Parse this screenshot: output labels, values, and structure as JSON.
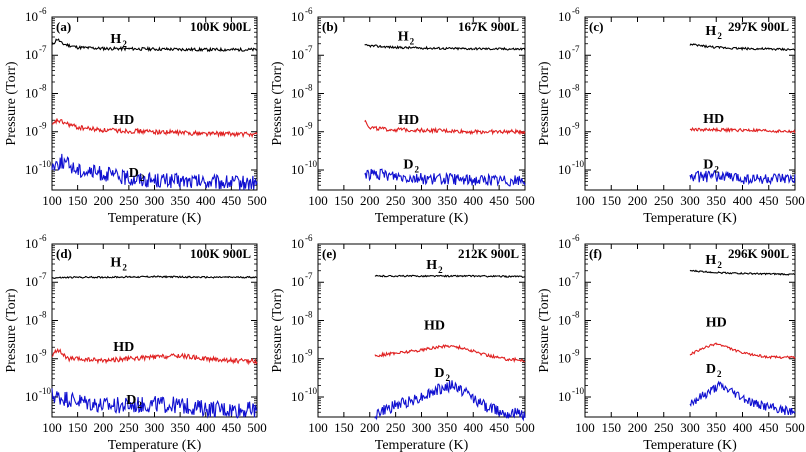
{
  "chart_data": [
    {
      "type": "line",
      "panel": "(a)",
      "condition": "100K 900L",
      "xlabel": "Temperature (K)",
      "ylabel": "Pressure (Torr)",
      "xlim": [
        100,
        500
      ],
      "ylim": [
        3e-11,
        1e-06
      ],
      "yscale": "log",
      "xticks": [
        100,
        150,
        200,
        250,
        300,
        350,
        400,
        450,
        500
      ],
      "yticks": [
        {
          "value": 1e-10,
          "exp": "-10"
        },
        {
          "value": 1e-09,
          "exp": "-9"
        },
        {
          "value": 1e-08,
          "exp": "-8"
        },
        {
          "value": 1e-07,
          "exp": "-7"
        },
        {
          "value": 1e-06,
          "exp": "-6"
        }
      ],
      "series": [
        {
          "name": "H2",
          "label": "H",
          "label_sub": "2",
          "label_x": 230,
          "label_y": 2.1e-07,
          "color": "#000000",
          "noise": 0.04,
          "x": [
            100,
            110,
            120,
            150,
            200,
            300,
            400,
            500
          ],
          "y": [
            1.8e-07,
            2.7e-07,
            2e-07,
            1.6e-07,
            1.5e-07,
            1.45e-07,
            1.4e-07,
            1.4e-07
          ]
        },
        {
          "name": "HD",
          "label": "HD",
          "label_x": 240,
          "label_y": 1.6e-09,
          "color": "#e02020",
          "noise": 0.06,
          "x": [
            100,
            110,
            130,
            150,
            200,
            300,
            400,
            500
          ],
          "y": [
            1.4e-09,
            2e-09,
            1.6e-09,
            1.3e-09,
            1.1e-09,
            1e-09,
            9e-10,
            8.5e-10
          ]
        },
        {
          "name": "D2",
          "label": "D",
          "label_sub": "2",
          "label_x": 265,
          "label_y": 6.5e-11,
          "color": "#1010d0",
          "noise": 0.2,
          "x": [
            100,
            120,
            150,
            200,
            250,
            300,
            400,
            500
          ],
          "y": [
            1.3e-10,
            1.7e-10,
            1e-10,
            8e-11,
            6e-11,
            5.5e-11,
            4.8e-11,
            4.5e-11
          ]
        }
      ]
    },
    {
      "type": "line",
      "panel": "(b)",
      "condition": "167K 900L",
      "xlabel": "Temperature (K)",
      "ylabel": "Pressure (Torr)",
      "xlim": [
        100,
        500
      ],
      "ylim": [
        3e-11,
        1e-06
      ],
      "yscale": "log",
      "xticks": [
        100,
        150,
        200,
        250,
        300,
        350,
        400,
        450,
        500
      ],
      "yticks": [
        {
          "value": 1e-10,
          "exp": "-10"
        },
        {
          "value": 1e-09,
          "exp": "-9"
        },
        {
          "value": 1e-08,
          "exp": "-8"
        },
        {
          "value": 1e-07,
          "exp": "-7"
        },
        {
          "value": 1e-06,
          "exp": "-6"
        }
      ],
      "series": [
        {
          "name": "H2",
          "label": "H",
          "label_sub": "2",
          "label_x": 270,
          "label_y": 2.4e-07,
          "color": "#000000",
          "noise": 0.03,
          "x": [
            190,
            250,
            350,
            500
          ],
          "y": [
            1.8e-07,
            1.6e-07,
            1.5e-07,
            1.45e-07
          ]
        },
        {
          "name": "HD",
          "label": "HD",
          "label_x": 275,
          "label_y": 1.6e-09,
          "color": "#e02020",
          "noise": 0.05,
          "x": [
            190,
            200,
            230,
            300,
            400,
            500
          ],
          "y": [
            2e-09,
            1.3e-09,
            1.15e-09,
            1.1e-09,
            1e-09,
            1e-09
          ]
        },
        {
          "name": "D2",
          "label": "D",
          "label_sub": "2",
          "label_x": 280,
          "label_y": 1.1e-10,
          "color": "#1010d0",
          "noise": 0.15,
          "x": [
            190,
            250,
            300,
            400,
            500
          ],
          "y": [
            8e-11,
            7e-11,
            6e-11,
            5.5e-11,
            5.2e-11
          ]
        }
      ]
    },
    {
      "type": "line",
      "panel": "(c)",
      "condition": "297K 900L",
      "xlabel": "Temperature (K)",
      "ylabel": "Pressure (Torr)",
      "xlim": [
        100,
        500
      ],
      "ylim": [
        3e-11,
        1e-06
      ],
      "yscale": "log",
      "xticks": [
        100,
        150,
        200,
        250,
        300,
        350,
        400,
        450,
        500
      ],
      "yticks": [
        {
          "value": 1e-10,
          "exp": "-10"
        },
        {
          "value": 1e-09,
          "exp": "-9"
        },
        {
          "value": 1e-08,
          "exp": "-8"
        },
        {
          "value": 1e-07,
          "exp": "-7"
        },
        {
          "value": 1e-06,
          "exp": "-6"
        }
      ],
      "series": [
        {
          "name": "H2",
          "label": "H",
          "label_sub": "2",
          "label_x": 345,
          "label_y": 3.4e-07,
          "color": "#000000",
          "noise": 0.03,
          "x": [
            300,
            350,
            400,
            500
          ],
          "y": [
            1.9e-07,
            1.6e-07,
            1.5e-07,
            1.4e-07
          ]
        },
        {
          "name": "HD",
          "label": "HD",
          "label_x": 345,
          "label_y": 1.7e-09,
          "color": "#e02020",
          "noise": 0.04,
          "x": [
            300,
            400,
            500
          ],
          "y": [
            1.15e-09,
            1.1e-09,
            1e-09
          ]
        },
        {
          "name": "D2",
          "label": "D",
          "label_sub": "2",
          "label_x": 340,
          "label_y": 1.1e-10,
          "color": "#1010d0",
          "noise": 0.15,
          "x": [
            300,
            360,
            400,
            500
          ],
          "y": [
            6.5e-11,
            7e-11,
            6e-11,
            5.5e-11
          ]
        }
      ]
    },
    {
      "type": "line",
      "panel": "(d)",
      "condition": "100K 900L",
      "xlabel": "Temperature (K)",
      "ylabel": "Pressure (Torr)",
      "xlim": [
        100,
        500
      ],
      "ylim": [
        3e-11,
        1e-06
      ],
      "yscale": "log",
      "xticks": [
        100,
        150,
        200,
        250,
        300,
        350,
        400,
        450,
        500
      ],
      "yticks": [
        {
          "value": 1e-10,
          "exp": "-10"
        },
        {
          "value": 1e-09,
          "exp": "-9"
        },
        {
          "value": 1e-08,
          "exp": "-8"
        },
        {
          "value": 1e-07,
          "exp": "-7"
        },
        {
          "value": 1e-06,
          "exp": "-6"
        }
      ],
      "series": [
        {
          "name": "H2",
          "label": "H",
          "label_sub": "2",
          "label_x": 230,
          "label_y": 2.6e-07,
          "color": "#000000",
          "noise": 0.02,
          "x": [
            100,
            150,
            200,
            300,
            400,
            500
          ],
          "y": [
            1.3e-07,
            1.35e-07,
            1.35e-07,
            1.4e-07,
            1.35e-07,
            1.35e-07
          ]
        },
        {
          "name": "HD",
          "label": "HD",
          "label_x": 240,
          "label_y": 1.6e-09,
          "color": "#e02020",
          "noise": 0.06,
          "x": [
            100,
            110,
            130,
            200,
            250,
            300,
            350,
            400,
            450,
            500
          ],
          "y": [
            1.1e-09,
            1.8e-09,
            1e-09,
            9e-10,
            1e-09,
            1.1e-09,
            1.2e-09,
            1e-09,
            9e-10,
            8.5e-10
          ]
        },
        {
          "name": "D2",
          "label": "D",
          "label_sub": "2",
          "label_x": 260,
          "label_y": 6.5e-11,
          "color": "#1010d0",
          "noise": 0.22,
          "x": [
            100,
            150,
            200,
            250,
            300,
            350,
            400,
            500
          ],
          "y": [
            1.1e-10,
            8e-11,
            6e-11,
            6e-11,
            6.5e-11,
            6e-11,
            5e-11,
            4.5e-11
          ]
        }
      ]
    },
    {
      "type": "line",
      "panel": "(e)",
      "condition": "212K 900L",
      "xlabel": "Temperature (K)",
      "ylabel": "Pressure (Torr)",
      "xlim": [
        100,
        500
      ],
      "ylim": [
        3e-11,
        1e-06
      ],
      "yscale": "log",
      "xticks": [
        100,
        150,
        200,
        250,
        300,
        350,
        400,
        450,
        500
      ],
      "yticks": [
        {
          "value": 1e-10,
          "exp": "-10"
        },
        {
          "value": 1e-09,
          "exp": "-9"
        },
        {
          "value": 1e-08,
          "exp": "-8"
        },
        {
          "value": 1e-07,
          "exp": "-7"
        },
        {
          "value": 1e-06,
          "exp": "-6"
        }
      ],
      "series": [
        {
          "name": "H2",
          "label": "H",
          "label_sub": "2",
          "label_x": 325,
          "label_y": 2.2e-07,
          "color": "#000000",
          "noise": 0.02,
          "x": [
            210,
            300,
            400,
            500
          ],
          "y": [
            1.45e-07,
            1.45e-07,
            1.45e-07,
            1.4e-07
          ]
        },
        {
          "name": "HD",
          "label": "HD",
          "label_x": 325,
          "label_y": 5.8e-09,
          "color": "#e02020",
          "noise": 0.04,
          "x": [
            210,
            250,
            300,
            330,
            355,
            380,
            420,
            460,
            500
          ],
          "y": [
            1.2e-09,
            1.4e-09,
            1.7e-09,
            2e-09,
            2.2e-09,
            1.9e-09,
            1.3e-09,
            1e-09,
            9e-10
          ]
        },
        {
          "name": "D2",
          "label": "D",
          "label_sub": "2",
          "label_x": 340,
          "label_y": 3.3e-10,
          "color": "#1010d0",
          "noise": 0.15,
          "x": [
            210,
            250,
            300,
            330,
            360,
            390,
            420,
            460,
            500
          ],
          "y": [
            3.5e-11,
            6e-11,
            1e-10,
            1.5e-10,
            2e-10,
            1.2e-10,
            6e-11,
            4e-11,
            3.5e-11
          ]
        }
      ]
    },
    {
      "type": "line",
      "panel": "(f)",
      "condition": "296K 900L",
      "xlabel": "Temperature (K)",
      "ylabel": "Pressure (Torr)",
      "xlim": [
        100,
        500
      ],
      "ylim": [
        3e-11,
        1e-06
      ],
      "yscale": "log",
      "xticks": [
        100,
        150,
        200,
        250,
        300,
        350,
        400,
        450,
        500
      ],
      "yticks": [
        {
          "value": 1e-10,
          "exp": "-10"
        },
        {
          "value": 1e-09,
          "exp": "-9"
        },
        {
          "value": 1e-08,
          "exp": "-8"
        },
        {
          "value": 1e-07,
          "exp": "-7"
        },
        {
          "value": 1e-06,
          "exp": "-6"
        }
      ],
      "series": [
        {
          "name": "H2",
          "label": "H",
          "label_sub": "2",
          "label_x": 345,
          "label_y": 3e-07,
          "color": "#000000",
          "noise": 0.02,
          "x": [
            300,
            350,
            400,
            500
          ],
          "y": [
            2e-07,
            1.8e-07,
            1.7e-07,
            1.6e-07
          ]
        },
        {
          "name": "HD",
          "label": "HD",
          "label_x": 350,
          "label_y": 7e-09,
          "color": "#e02020",
          "noise": 0.03,
          "x": [
            300,
            330,
            350,
            370,
            400,
            450,
            500
          ],
          "y": [
            1.3e-09,
            2e-09,
            2.5e-09,
            2e-09,
            1.4e-09,
            1.1e-09,
            1.1e-09
          ]
        },
        {
          "name": "D2",
          "label": "D",
          "label_sub": "2",
          "label_x": 345,
          "label_y": 4.2e-10,
          "color": "#1010d0",
          "noise": 0.12,
          "x": [
            300,
            330,
            355,
            380,
            420,
            460,
            500
          ],
          "y": [
            7e-11,
            1.2e-10,
            2e-10,
            1.4e-10,
            7e-11,
            5e-11,
            4e-11
          ]
        }
      ]
    }
  ]
}
